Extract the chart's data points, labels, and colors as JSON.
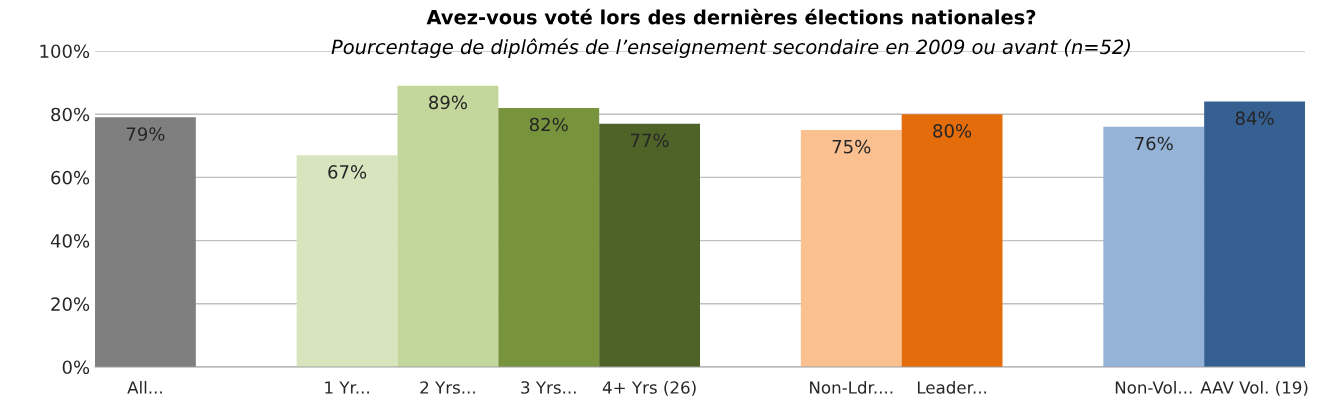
{
  "chart_data": {
    "type": "bar",
    "title": "Avez-vous voté lors des dernières élections nationales?",
    "subtitle": "Pourcentage de diplômés de l’enseignement secondaire en 2009 ou avant (n=52)",
    "categories": [
      "All...",
      null,
      "1 Yr...",
      "2 Yrs...",
      "3 Yrs...",
      "4+ Yrs (26)",
      null,
      "Non-Ldr....",
      "Leader...",
      null,
      "Non-Vol...",
      "AAV Vol. (19)"
    ],
    "values": [
      79,
      null,
      67,
      89,
      82,
      77,
      null,
      75,
      80,
      null,
      76,
      84
    ],
    "colors": [
      "#7f7f7f",
      null,
      "#d7e4bd",
      "#c3d69b",
      "#77933c",
      "#4f6228",
      null,
      "#fac090",
      "#e46c0a",
      null,
      "#95b3d7",
      "#366092"
    ],
    "value_labels": [
      "79%",
      null,
      "67%",
      "89%",
      "82%",
      "77%",
      null,
      "75%",
      "80%",
      null,
      "76%",
      "84%"
    ],
    "ylim": [
      0,
      100
    ],
    "yticks": [
      {
        "value": 0,
        "label": "0%"
      },
      {
        "value": 20,
        "label": "20%"
      },
      {
        "value": 40,
        "label": "40%"
      },
      {
        "value": 60,
        "label": "60%"
      },
      {
        "value": 80,
        "label": "80%"
      },
      {
        "value": 100,
        "label": "100%"
      }
    ],
    "grid": "y"
  }
}
